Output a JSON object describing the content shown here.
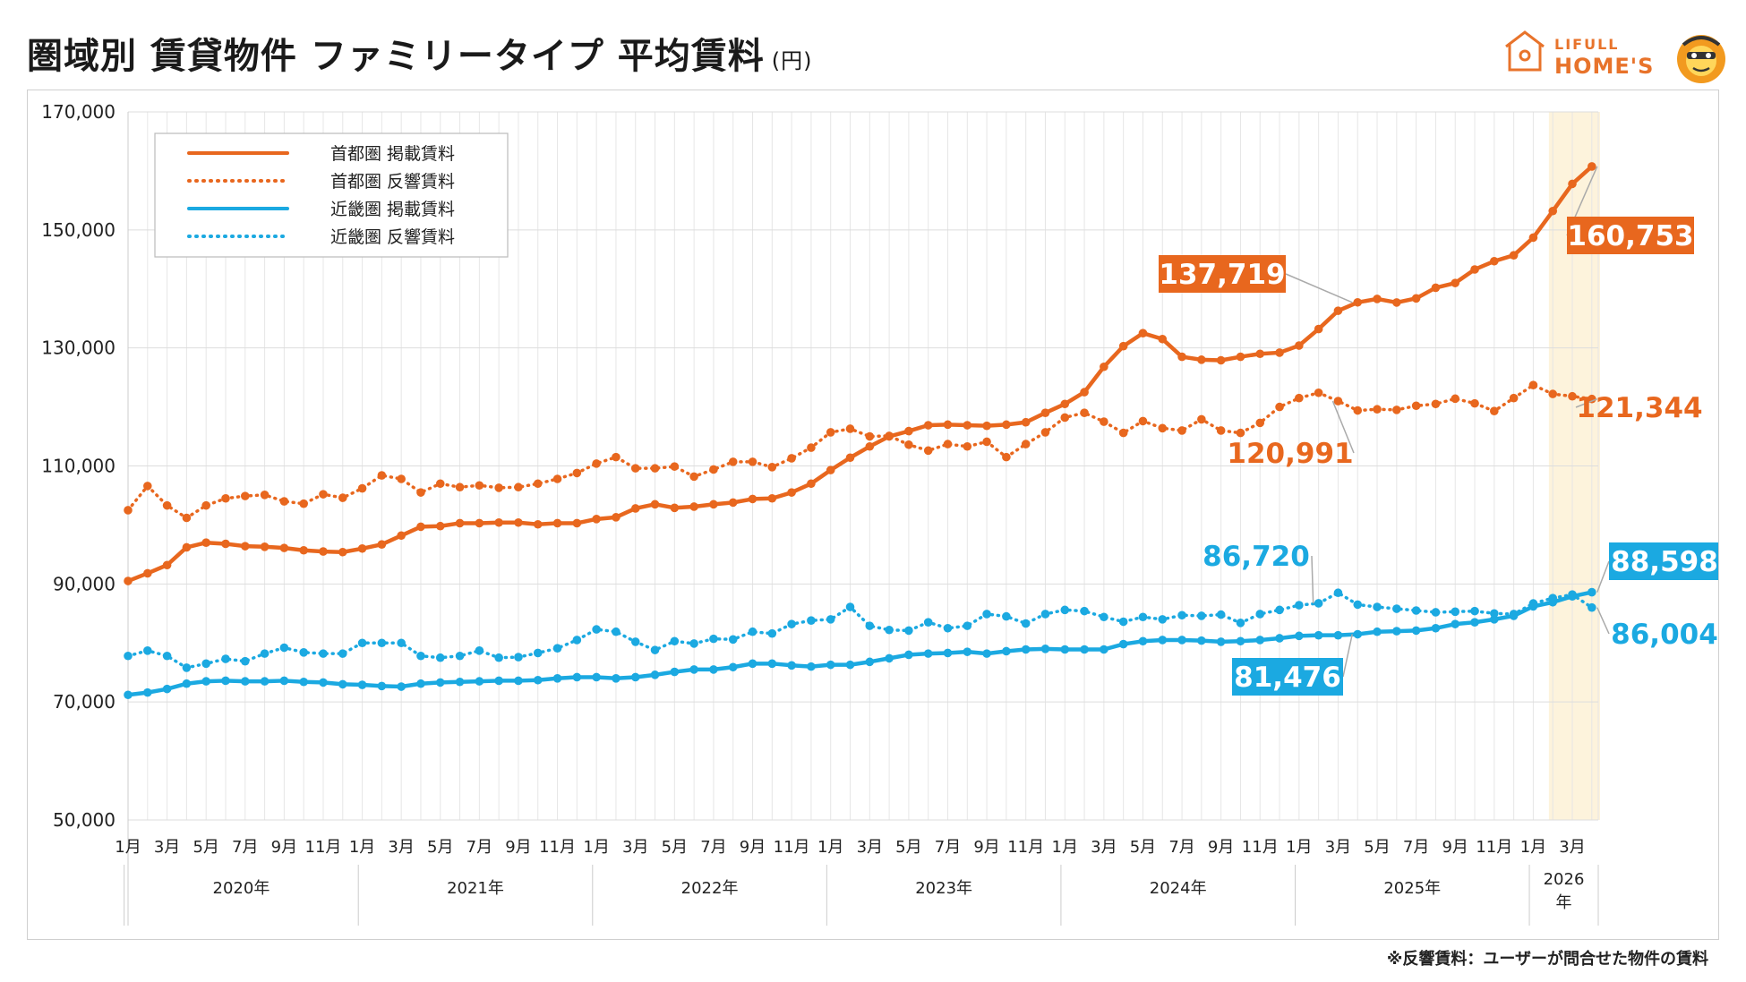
{
  "header": {
    "title": "圏域別 賃貸物件 ファミリータイプ 平均賃料",
    "unit": "(円)"
  },
  "logo": {
    "line1": "LIFULL",
    "line2": "HOME'S",
    "icon": "house-icon",
    "mascot": "mascot-character-icon",
    "color": "#e8732b"
  },
  "footnote": "※反響賃料：ユーザーが問合せた物件の賃料",
  "chart_data": {
    "type": "line",
    "title": "圏域別 賃貸物件 ファミリータイプ 平均賃料",
    "ylabel": "(円)",
    "ylim": [
      50000,
      170000
    ],
    "yticks": [
      50000,
      70000,
      90000,
      110000,
      130000,
      150000,
      170000
    ],
    "ytick_labels": [
      "50,000",
      "70,000",
      "90,000",
      "110,000",
      "130,000",
      "150,000",
      "170,000"
    ],
    "grid": true,
    "legend_position": "top-left",
    "highlight_period": "2026年1月〜3月",
    "highlight_color": "#fdf3dc",
    "x_month_labels": [
      "1月",
      "3月",
      "5月",
      "7月",
      "9月",
      "11月"
    ],
    "x_month_labels_2026": [
      "1月",
      "3月"
    ],
    "years": [
      "2020年",
      "2021年",
      "2022年",
      "2023年",
      "2024年",
      "2025年",
      "2026年"
    ],
    "x_start": "2020-01",
    "x_end": "2026-03",
    "series": [
      {
        "name": "首都圏 掲載賃料",
        "style": "solid",
        "color": "#e8671e",
        "values": [
          90500,
          91800,
          93200,
          96200,
          97000,
          96800,
          96400,
          96300,
          96100,
          95700,
          95500,
          95400,
          96000,
          96700,
          98200,
          99700,
          99800,
          100300,
          100300,
          100400,
          100400,
          100100,
          100300,
          100300,
          101000,
          101300,
          102800,
          103500,
          102900,
          103100,
          103500,
          103800,
          104400,
          104500,
          105500,
          107000,
          109300,
          111400,
          113300,
          115000,
          115900,
          116900,
          117000,
          116900,
          116800,
          117000,
          117400,
          119000,
          120500,
          122500,
          126800,
          130300,
          132500,
          131500,
          128500,
          128000,
          127900,
          128500,
          129000,
          129200,
          130400,
          133200,
          136300,
          137719,
          138300,
          137700,
          138400,
          140200,
          141000,
          143300,
          144700,
          145700,
          148700,
          153200,
          157800,
          160753
        ],
        "callouts": [
          {
            "label": "137,719",
            "index": 63,
            "boxed": true
          },
          {
            "label": "160,753",
            "index": 75,
            "boxed": true
          }
        ]
      },
      {
        "name": "首都圏 反響賃料",
        "style": "dotted",
        "color": "#e8671e",
        "values": [
          102500,
          106600,
          103300,
          101200,
          103300,
          104500,
          104900,
          105100,
          104000,
          103600,
          105200,
          104600,
          106200,
          108400,
          107800,
          105500,
          107000,
          106400,
          106700,
          106300,
          106400,
          107000,
          107800,
          108800,
          110400,
          111500,
          109600,
          109600,
          109900,
          108200,
          109400,
          110700,
          110700,
          109800,
          111300,
          113100,
          115700,
          116300,
          115000,
          115100,
          113600,
          112600,
          113700,
          113300,
          114100,
          111500,
          113700,
          115700,
          118200,
          119000,
          117500,
          115600,
          117600,
          116400,
          116000,
          117900,
          116000,
          115600,
          117300,
          120000,
          121500,
          122400,
          120991,
          119400,
          119600,
          119500,
          120200,
          120500,
          121400,
          120600,
          119300,
          121500,
          123700,
          122200,
          121800,
          121344
        ],
        "callouts": [
          {
            "label": "120,991",
            "index": 62,
            "boxed": false
          },
          {
            "label": "121,344",
            "index": 75,
            "boxed": false
          }
        ]
      },
      {
        "name": "近畿圏 掲載賃料",
        "style": "solid",
        "color": "#1ba9e1",
        "values": [
          71200,
          71600,
          72200,
          73100,
          73500,
          73600,
          73500,
          73500,
          73600,
          73400,
          73300,
          73000,
          72900,
          72700,
          72600,
          73100,
          73300,
          73400,
          73500,
          73600,
          73600,
          73700,
          74000,
          74200,
          74200,
          74000,
          74200,
          74600,
          75100,
          75500,
          75500,
          75900,
          76500,
          76500,
          76200,
          76000,
          76300,
          76300,
          76800,
          77400,
          78000,
          78200,
          78300,
          78500,
          78200,
          78600,
          78900,
          79000,
          78900,
          78900,
          78900,
          79800,
          80300,
          80500,
          80500,
          80400,
          80200,
          80300,
          80500,
          80800,
          81200,
          81300,
          81300,
          81476,
          81900,
          82000,
          82100,
          82500,
          83200,
          83500,
          84000,
          84600,
          86200,
          86900,
          87900,
          88598
        ],
        "callouts": [
          {
            "label": "81,476",
            "index": 63,
            "boxed": true
          },
          {
            "label": "88,598",
            "index": 75,
            "boxed": true
          }
        ]
      },
      {
        "name": "近畿圏 反響賃料",
        "style": "dotted",
        "color": "#1ba9e1",
        "values": [
          77800,
          78700,
          77800,
          75800,
          76500,
          77300,
          76900,
          78200,
          79200,
          78400,
          78200,
          78200,
          80000,
          80000,
          80000,
          77800,
          77500,
          77800,
          78700,
          77500,
          77600,
          78300,
          79100,
          80500,
          82300,
          81900,
          80200,
          78800,
          80300,
          79900,
          80700,
          80600,
          81900,
          81600,
          83200,
          83800,
          84000,
          86100,
          82900,
          82200,
          82100,
          83500,
          82500,
          82900,
          84900,
          84500,
          83300,
          84900,
          85600,
          85400,
          84400,
          83600,
          84400,
          84000,
          84700,
          84600,
          84800,
          83400,
          84900,
          85600,
          86400,
          86720,
          88500,
          86500,
          86100,
          85800,
          85500,
          85200,
          85300,
          85400,
          85000,
          84900,
          86700,
          87600,
          88200,
          86004
        ],
        "callouts": [
          {
            "label": "86,720",
            "index": 61,
            "boxed": false
          },
          {
            "label": "86,004",
            "index": 75,
            "boxed": false
          }
        ]
      }
    ]
  }
}
